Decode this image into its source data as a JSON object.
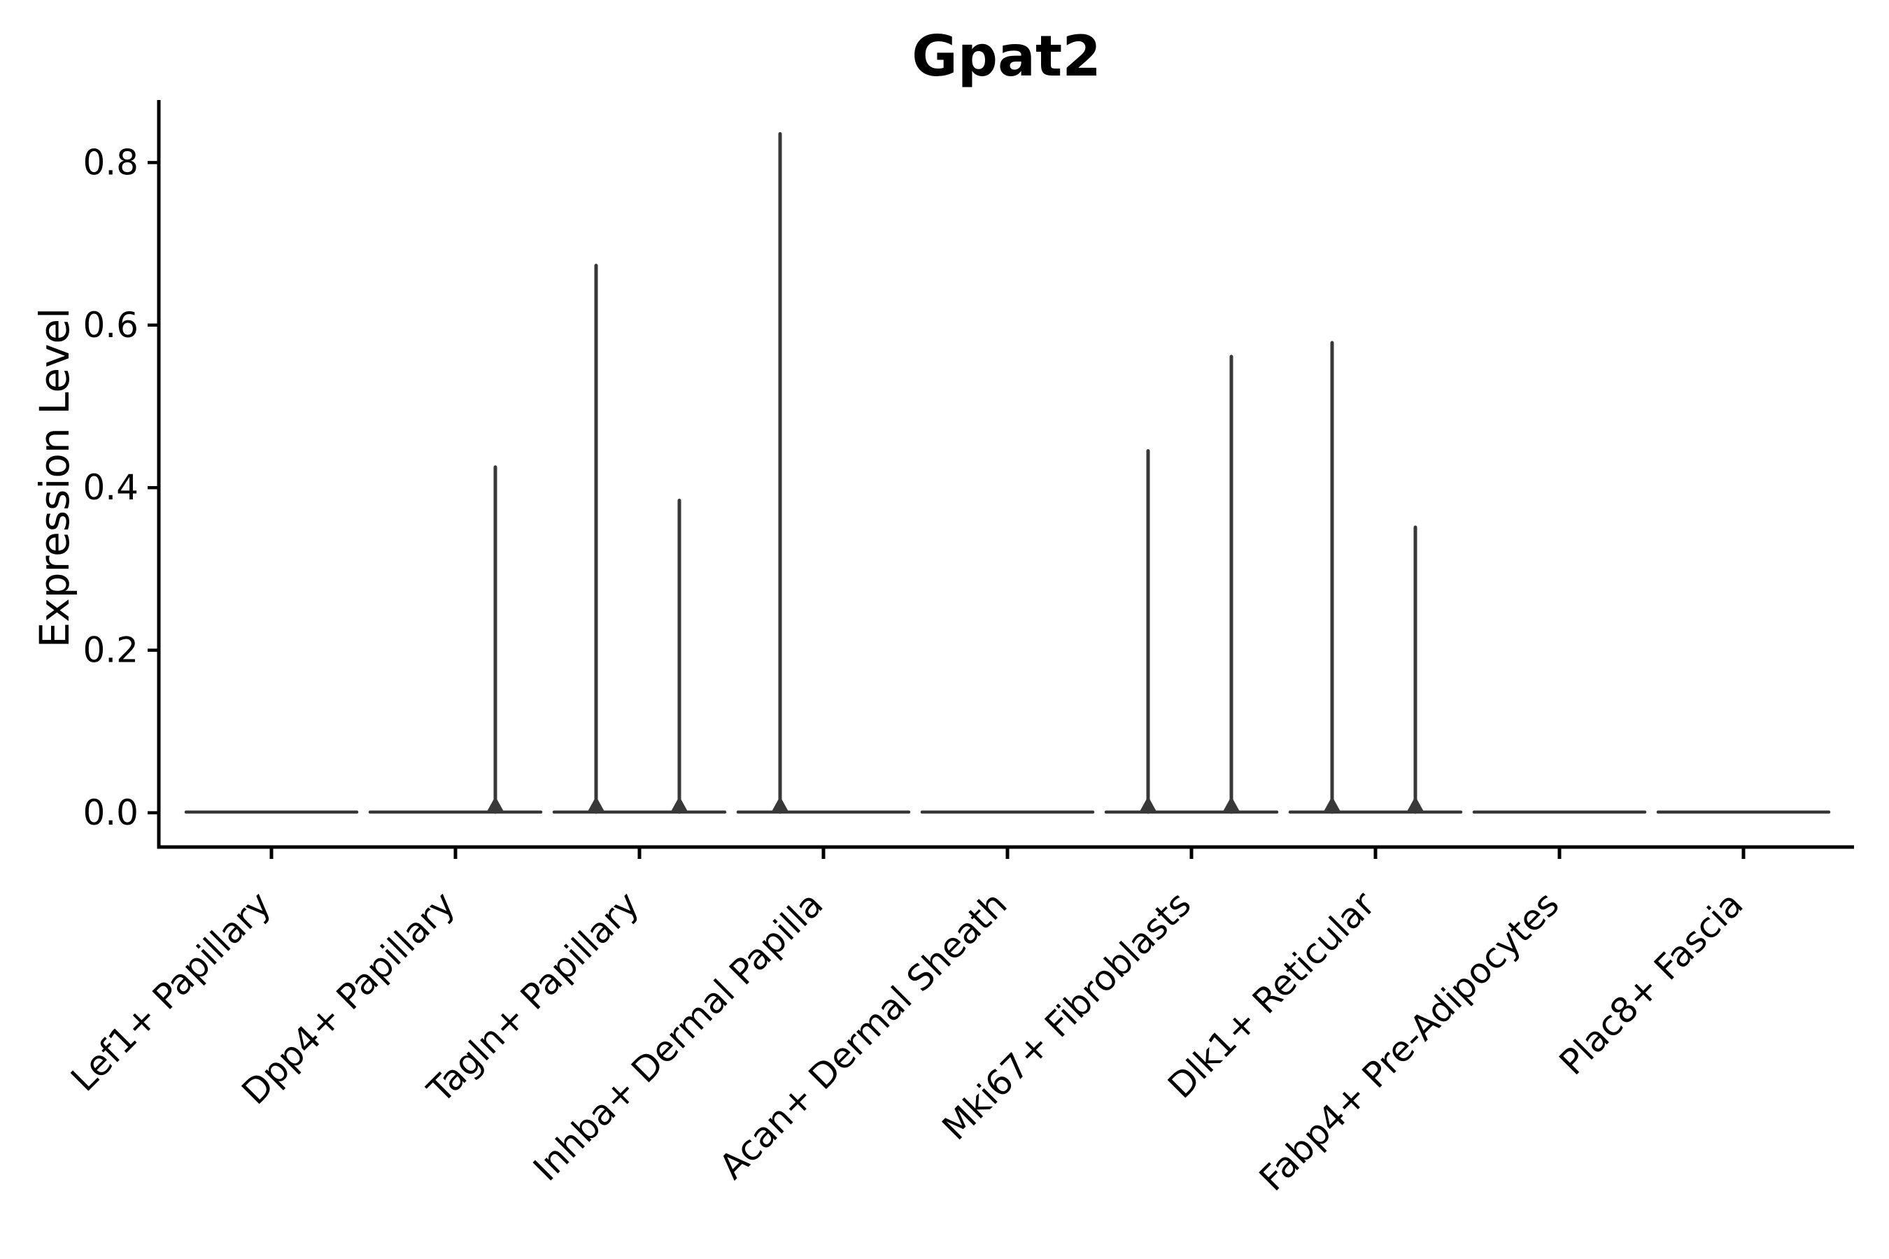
{
  "chart_data": {
    "type": "violin",
    "title": "Gpat2",
    "ylabel": "Expression Level",
    "xlabel": "",
    "y_ticks": [
      {
        "value": 0.0,
        "label": "0.0"
      },
      {
        "value": 0.2,
        "label": "0.2"
      },
      {
        "value": 0.4,
        "label": "0.4"
      },
      {
        "value": 0.6,
        "label": "0.6"
      },
      {
        "value": 0.8,
        "label": "0.8"
      }
    ],
    "ylim": [
      -0.04,
      0.88
    ],
    "grid": false,
    "legend": "none",
    "categories": [
      "Lef1+ Papillary",
      "Dpp4+ Papillary",
      "Tagln+ Papillary",
      "Inhba+ Dermal Papilla",
      "Acan+ Dermal Sheath",
      "Mki67+ Fibroblasts",
      "Dlk1+ Reticular",
      "Fabp4+ Pre-Adipocytes",
      "Plac8+ Fascia"
    ],
    "violins": [
      {
        "category": "Lef1+ Papillary",
        "baseline_value": 0.0,
        "spikes": []
      },
      {
        "category": "Dpp4+ Papillary",
        "baseline_value": 0.0,
        "spikes": [
          {
            "position": "right",
            "max_expression": 0.427
          }
        ]
      },
      {
        "category": "Tagln+ Papillary",
        "baseline_value": 0.0,
        "spikes": [
          {
            "position": "left",
            "max_expression": 0.675
          },
          {
            "position": "right",
            "max_expression": 0.386
          }
        ]
      },
      {
        "category": "Inhba+ Dermal Papilla",
        "baseline_value": 0.0,
        "spikes": [
          {
            "position": "left",
            "max_expression": 0.837
          }
        ]
      },
      {
        "category": "Acan+ Dermal Sheath",
        "baseline_value": 0.0,
        "spikes": []
      },
      {
        "category": "Mki67+ Fibroblasts",
        "baseline_value": 0.0,
        "spikes": [
          {
            "position": "left",
            "max_expression": 0.447
          },
          {
            "position": "right",
            "max_expression": 0.563
          }
        ]
      },
      {
        "category": "Dlk1+ Reticular",
        "baseline_value": 0.0,
        "spikes": [
          {
            "position": "left",
            "max_expression": 0.58
          },
          {
            "position": "right",
            "max_expression": 0.353
          }
        ]
      },
      {
        "category": "Fabp4+ Pre-Adipocytes",
        "baseline_value": 0.0,
        "spikes": []
      },
      {
        "category": "Plac8+ Fascia",
        "baseline_value": 0.0,
        "spikes": []
      }
    ],
    "colors": {
      "violin": "#383838",
      "axis": "#000000",
      "text": "#000000",
      "background": "#ffffff"
    }
  }
}
